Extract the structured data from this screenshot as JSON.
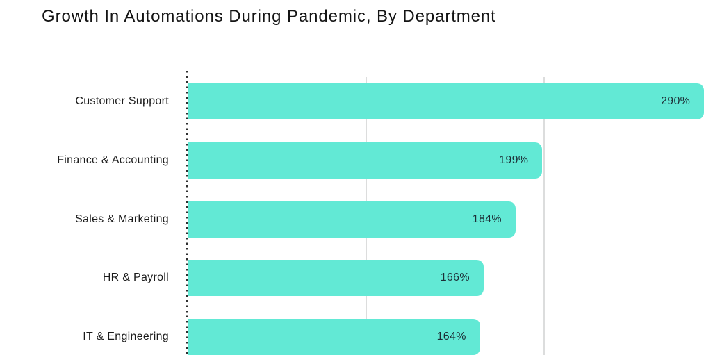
{
  "chart_data": {
    "type": "bar",
    "orientation": "horizontal",
    "title": "Growth In Automations During Pandemic, By Department",
    "categories": [
      "Customer Support",
      "Finance & Accounting",
      "Sales & Marketing",
      "HR & Payroll",
      "IT & Engineering"
    ],
    "values": [
      290,
      199,
      184,
      166,
      164
    ],
    "value_labels": [
      "290%",
      "199%",
      "184%",
      "166%",
      "164%"
    ],
    "xlabel": "",
    "ylabel": "",
    "xlim": [
      0,
      295
    ],
    "gridlines_x": [
      100,
      200
    ],
    "grid": "vertical light gray lines, dotted vertical baseline at zero",
    "legend_position": "none",
    "value_label_position": "inside-end",
    "colors": {
      "bar": "#62E9D5",
      "value_text": "#1D2E36",
      "category_text": "#1B1B1B",
      "title_text": "#141414",
      "gridline": "#DCDDDD",
      "axis_dots": "#2F2F2F",
      "background": "#FFFFFF"
    }
  }
}
